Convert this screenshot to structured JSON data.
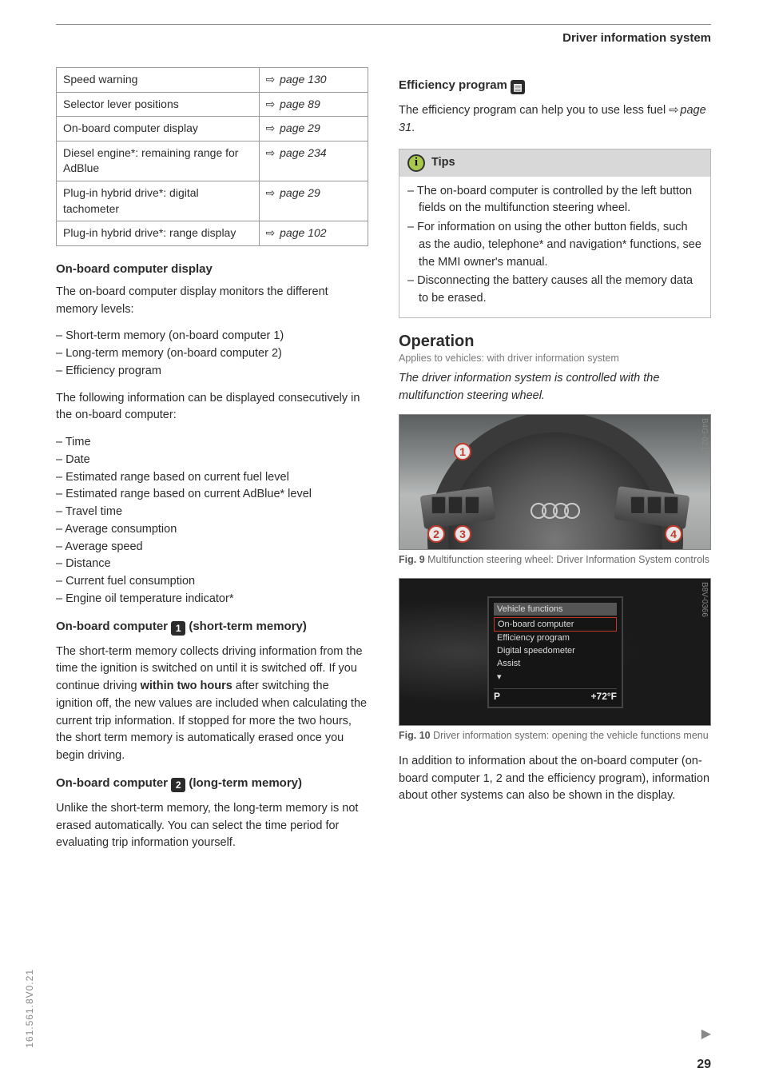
{
  "header": "Driver information system",
  "ref_table": [
    [
      "Speed warning",
      "page 130"
    ],
    [
      "Selector lever positions",
      "page 89"
    ],
    [
      "On-board computer display",
      "page 29"
    ],
    [
      "Diesel engine*: remaining range for AdBlue",
      "page 234"
    ],
    [
      "Plug-in hybrid drive*: digital tachometer",
      "page 29"
    ],
    [
      "Plug-in hybrid drive*: range display",
      "page 102"
    ]
  ],
  "h_obc": "On-board computer display",
  "p_obc": "The on-board computer display monitors the different memory levels:",
  "list_mem": [
    "Short-term memory (on-board computer 1)",
    "Long-term memory (on-board computer 2)",
    "Efficiency program"
  ],
  "p_info": "The following information can be displayed consecutively in the on-board computer:",
  "list_info": [
    "Time",
    "Date",
    "Estimated range based on current fuel level",
    "Estimated range based on current AdBlue* level",
    "Travel time",
    "Average consumption",
    "Average speed",
    "Distance",
    "Current fuel consumption",
    "Engine oil temperature indicator*"
  ],
  "h_st_pre": "On-board computer ",
  "h_st_num": "1",
  "h_st_post": " (short-term memory)",
  "p_st1": "The short-term memory collects driving information from the time the ignition is switched on until it is switched off. If you continue driving ",
  "p_st_bold": "within two hours",
  "p_st2": " after switching the ignition off, the new values are included when calculating the current trip information. If stopped for more the two hours, the short term memory is automatically erased once you begin driving.",
  "h_lt_pre": "On-board computer ",
  "h_lt_num": "2",
  "h_lt_post": " (long-term memory)",
  "p_lt": "Unlike the short-term memory, the long-term memory is not erased automatically. You can select the time period for evaluating trip information yourself.",
  "h_eff": "Efficiency program ",
  "p_eff1": "The efficiency program can help you to use less fuel ",
  "p_eff_link": "page 31",
  "p_eff2": ".",
  "tips_label": "Tips",
  "tips": [
    "The on-board computer is controlled by the left button fields on the multifunction steering wheel.",
    "For information on using the other button fields, such as the audio, telephone* and navigation* functions, see the MMI owner's manual.",
    "Disconnecting the battery causes all the memory data to be erased."
  ],
  "h_op": "Operation",
  "applies": "Applies to vehicles: with driver information system",
  "p_op_lead": "The driver information system is controlled with the multifunction steering wheel.",
  "fig9_code": "B4G-0217",
  "fig9_cap_b": "Fig. 9",
  "fig9_cap": " Multifunction steering wheel: Driver Information System controls",
  "fig10_code": "B8V-0366",
  "screen": {
    "head": "Vehicle functions",
    "sel": "On-board computer",
    "r2": "Efficiency program",
    "r3": "Digital speedometer",
    "r4": "Assist",
    "bl": "P",
    "br": "+72°F"
  },
  "fig10_cap_b": "Fig. 10",
  "fig10_cap": " Driver information system: opening the vehicle functions menu",
  "p_bottom": "In addition to information about the on-board computer (on-board computer 1, 2 and the efficiency program), information about other systems can also be shown in the display.",
  "side_code": "161.561.8V0.21",
  "page_num": "29"
}
